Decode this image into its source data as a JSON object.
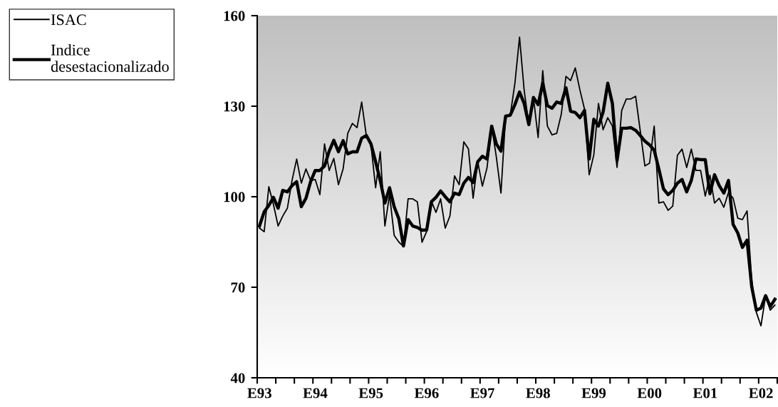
{
  "chart_data": {
    "type": "line",
    "categories": [
      "E93",
      null,
      null,
      null,
      null,
      null,
      null,
      null,
      null,
      null,
      null,
      null,
      "E94",
      null,
      null,
      null,
      null,
      null,
      null,
      null,
      null,
      null,
      null,
      null,
      "E95",
      null,
      null,
      null,
      null,
      null,
      null,
      null,
      null,
      null,
      null,
      null,
      "E96",
      null,
      null,
      null,
      null,
      null,
      null,
      null,
      null,
      null,
      null,
      null,
      "E97",
      null,
      null,
      null,
      null,
      null,
      null,
      null,
      null,
      null,
      null,
      null,
      "E98",
      null,
      null,
      null,
      null,
      null,
      null,
      null,
      null,
      null,
      null,
      null,
      "E99",
      null,
      null,
      null,
      null,
      null,
      null,
      null,
      null,
      null,
      null,
      null,
      "E00",
      null,
      null,
      null,
      null,
      null,
      null,
      null,
      null,
      null,
      null,
      null,
      "E01",
      null,
      null,
      null,
      null,
      null,
      null,
      null,
      null,
      null,
      null,
      null,
      "E02",
      null,
      null,
      null
    ],
    "series": [
      {
        "name": "ISAC",
        "color": "#000000",
        "values": [
          89.6,
          88.4,
          103.3,
          97.4,
          90.3,
          93.6,
          96.2,
          105.4,
          112.5,
          104.5,
          109.2,
          105.4,
          105.7,
          100.7,
          117.5,
          108.7,
          112.7,
          104,
          109.2,
          121,
          124.3,
          122.9,
          131.4,
          120.3,
          117.2,
          103,
          114.9,
          90.3,
          100.7,
          87.2,
          85,
          83.5,
          99.3,
          99.3,
          98.3,
          84.9,
          88.5,
          98.6,
          94.8,
          99.3,
          89.6,
          93.6,
          106.9,
          104,
          118.2,
          115.8,
          99.5,
          111.6,
          103.5,
          109.6,
          123.4,
          113.2,
          101.2,
          126.7,
          127,
          137.6,
          152.9,
          135.2,
          123.9,
          132.9,
          119.6,
          141.8,
          123.4,
          120.5,
          121,
          127.4,
          139.9,
          138.5,
          142.7,
          135.4,
          129,
          107.3,
          113.9,
          130.9,
          122.2,
          126.2,
          123.4,
          109.7,
          128.6,
          132.4,
          132.4,
          133.3,
          121.8,
          110.2,
          111.1,
          123.4,
          97.9,
          98.3,
          95.5,
          96.9,
          113.7,
          115.8,
          109.7,
          115.8,
          108.7,
          108.7,
          100.2,
          107.1,
          97.9,
          99.5,
          96.5,
          101.4,
          99.5,
          92.9,
          92.4,
          95.3,
          72.4,
          61.7,
          57.2,
          67.2,
          62.4,
          64.1
        ]
      },
      {
        "name": "Indice\ndesestacionalizado",
        "color": "#000000",
        "values": [
          90.3,
          95,
          97.1,
          99.8,
          96.2,
          102.1,
          101.6,
          103.7,
          105,
          96.7,
          99.5,
          105,
          108.7,
          108.7,
          110.2,
          115.1,
          118.7,
          114.9,
          118.6,
          114.2,
          114.9,
          114.9,
          119.4,
          120.3,
          117.5,
          111.6,
          105.4,
          97.9,
          103,
          96.7,
          92.7,
          83.7,
          92.4,
          90.3,
          89.8,
          88.9,
          89,
          98.3,
          99.8,
          101.9,
          100,
          98.3,
          101.2,
          100.7,
          104.5,
          106.4,
          104.7,
          111.6,
          113.4,
          112.5,
          123.4,
          117.5,
          115.1,
          126.7,
          127,
          130.5,
          134.7,
          130.9,
          123.9,
          132.9,
          130.5,
          137.6,
          130.2,
          129.3,
          131.4,
          130.9,
          136.1,
          128.3,
          127.9,
          126.2,
          128.6,
          112.5,
          125.7,
          123.4,
          128.1,
          137.6,
          130.9,
          112.0,
          122.7,
          122.7,
          122.9,
          122,
          120.3,
          118.4,
          117.2,
          115.4,
          109.2,
          102.6,
          100.7,
          102.1,
          104.5,
          105.7,
          101.6,
          105.4,
          112.5,
          112.3,
          112.3,
          101,
          107.3,
          103.7,
          101.2,
          105.4,
          90.8,
          88,
          83.2,
          85.6,
          70.2,
          62.4,
          63.1,
          67.2,
          63.6,
          66
        ]
      }
    ],
    "ylim": [
      40,
      160
    ],
    "yticks": [
      40,
      70,
      100,
      130,
      160
    ],
    "grid": false,
    "legend": "left",
    "marker": "none",
    "line_style": "solid"
  }
}
